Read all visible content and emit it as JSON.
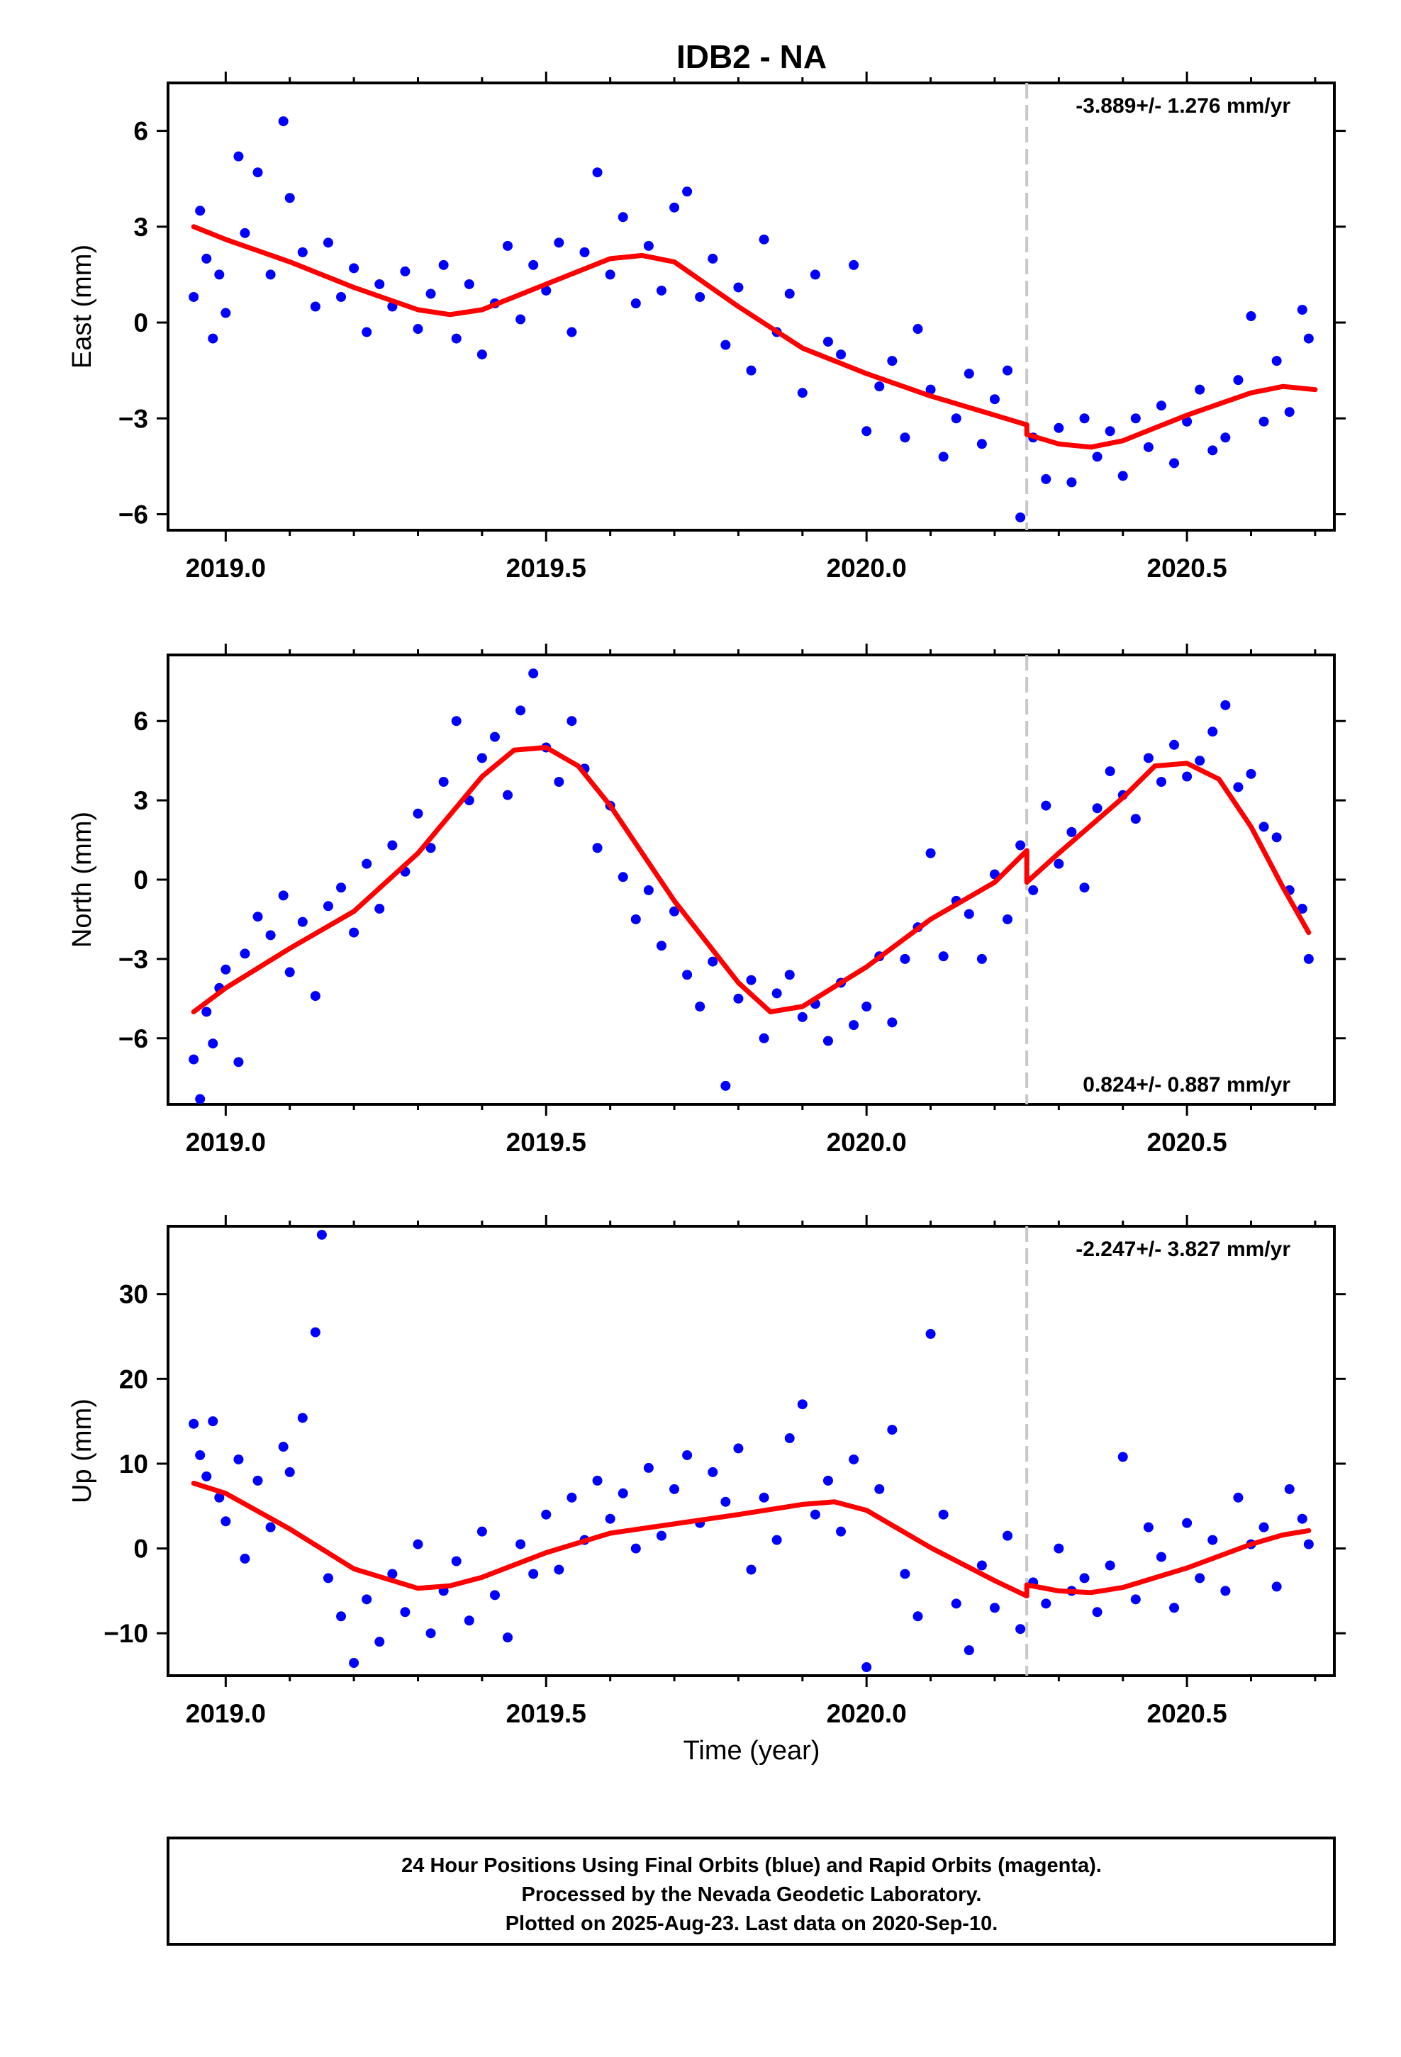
{
  "title": "IDB2 - NA",
  "xlabel": "Time (year)",
  "x_ticks": [
    "2019.0",
    "2019.5",
    "2020.0",
    "2020.5"
  ],
  "caption": [
    "24 Hour Positions Using Final Orbits (blue) and Rapid Orbits (magenta).",
    "Processed by the Nevada Geodetic Laboratory.",
    "Plotted on 2025-Aug-23. Last data on 2020-Sep-10."
  ],
  "colors": {
    "final_orbits": "#0000ff",
    "model_fit": "#ff0000",
    "offset_line": "#c8c8c8"
  },
  "chart_data": [
    {
      "type": "scatter",
      "ylabel": "East (mm)",
      "rate_label": "-3.889+/- 1.276 mm/yr",
      "rate_placement": "top-right",
      "xlim": [
        2018.91,
        2020.73
      ],
      "ylim": [
        -6.5,
        7.5
      ],
      "y_ticks": [
        6,
        3,
        0,
        -3,
        -6
      ],
      "y_tick_labels": [
        "6",
        "3",
        "0",
        "−3",
        "−6"
      ],
      "offset_epoch": 2020.25,
      "fit": {
        "x": [
          2018.95,
          2019.0,
          2019.1,
          2019.2,
          2019.3,
          2019.35,
          2019.4,
          2019.5,
          2019.6,
          2019.65,
          2019.7,
          2019.8,
          2019.9,
          2020.0,
          2020.1,
          2020.2,
          2020.25,
          2020.25,
          2020.3,
          2020.35,
          2020.4,
          2020.5,
          2020.6,
          2020.65,
          2020.7
        ],
        "y": [
          3.0,
          2.6,
          1.9,
          1.1,
          0.4,
          0.25,
          0.4,
          1.2,
          2.0,
          2.1,
          1.9,
          0.5,
          -0.8,
          -1.6,
          -2.3,
          -2.9,
          -3.2,
          -3.5,
          -3.8,
          -3.9,
          -3.7,
          -2.9,
          -2.2,
          -2.0,
          -2.1
        ]
      },
      "points": {
        "x": [
          2018.95,
          2018.96,
          2018.97,
          2018.98,
          2018.99,
          2019.0,
          2019.02,
          2019.03,
          2019.05,
          2019.07,
          2019.09,
          2019.1,
          2019.12,
          2019.14,
          2019.16,
          2019.18,
          2019.2,
          2019.22,
          2019.24,
          2019.26,
          2019.28,
          2019.3,
          2019.32,
          2019.34,
          2019.36,
          2019.38,
          2019.4,
          2019.42,
          2019.44,
          2019.46,
          2019.48,
          2019.5,
          2019.52,
          2019.54,
          2019.56,
          2019.58,
          2019.6,
          2019.62,
          2019.64,
          2019.66,
          2019.68,
          2019.7,
          2019.72,
          2019.74,
          2019.76,
          2019.78,
          2019.8,
          2019.82,
          2019.84,
          2019.86,
          2019.88,
          2019.9,
          2019.92,
          2019.94,
          2019.96,
          2019.98,
          2020.0,
          2020.02,
          2020.04,
          2020.06,
          2020.08,
          2020.1,
          2020.12,
          2020.14,
          2020.16,
          2020.18,
          2020.2,
          2020.22,
          2020.24,
          2020.26,
          2020.28,
          2020.3,
          2020.32,
          2020.34,
          2020.36,
          2020.38,
          2020.4,
          2020.42,
          2020.44,
          2020.46,
          2020.48,
          2020.5,
          2020.52,
          2020.54,
          2020.56,
          2020.58,
          2020.6,
          2020.62,
          2020.64,
          2020.66,
          2020.68,
          2020.69
        ],
        "y": [
          0.8,
          3.5,
          2.0,
          -0.5,
          1.5,
          0.3,
          5.2,
          2.8,
          4.7,
          1.5,
          6.3,
          3.9,
          2.2,
          0.5,
          2.5,
          0.8,
          1.7,
          -0.3,
          1.2,
          0.5,
          1.6,
          -0.2,
          0.9,
          1.8,
          -0.5,
          1.2,
          -1.0,
          0.6,
          2.4,
          0.1,
          1.8,
          1.0,
          2.5,
          -0.3,
          2.2,
          4.7,
          1.5,
          3.3,
          0.6,
          2.4,
          1.0,
          3.6,
          4.1,
          0.8,
          2.0,
          -0.7,
          1.1,
          -1.5,
          2.6,
          -0.3,
          0.9,
          -2.2,
          1.5,
          -0.6,
          -1.0,
          1.8,
          -3.4,
          -2.0,
          -1.2,
          -3.6,
          -0.2,
          -2.1,
          -4.2,
          -3.0,
          -1.6,
          -3.8,
          -2.4,
          -1.5,
          -6.1,
          -3.6,
          -4.9,
          -3.3,
          -5.0,
          -3.0,
          -4.2,
          -3.4,
          -4.8,
          -3.0,
          -3.9,
          -2.6,
          -4.4,
          -3.1,
          -2.1,
          -4.0,
          -3.6,
          -1.8,
          0.2,
          -3.1,
          -1.2,
          -2.8,
          0.4,
          -0.5
        ]
      }
    },
    {
      "type": "scatter",
      "ylabel": "North (mm)",
      "rate_label": "0.824+/- 0.887 mm/yr",
      "rate_placement": "bottom-right",
      "xlim": [
        2018.91,
        2020.73
      ],
      "ylim": [
        -8.5,
        8.5
      ],
      "y_ticks": [
        6,
        3,
        0,
        -3,
        -6
      ],
      "y_tick_labels": [
        "6",
        "3",
        "0",
        "−3",
        "−6"
      ],
      "offset_epoch": 2020.25,
      "fit": {
        "x": [
          2018.95,
          2019.0,
          2019.1,
          2019.2,
          2019.3,
          2019.4,
          2019.45,
          2019.5,
          2019.55,
          2019.6,
          2019.7,
          2019.8,
          2019.85,
          2019.9,
          2020.0,
          2020.1,
          2020.2,
          2020.25,
          2020.25,
          2020.3,
          2020.4,
          2020.45,
          2020.5,
          2020.55,
          2020.6,
          2020.65,
          2020.69
        ],
        "y": [
          -5.0,
          -4.1,
          -2.6,
          -1.2,
          1.0,
          3.9,
          4.9,
          5.0,
          4.3,
          2.8,
          -0.8,
          -3.9,
          -5.0,
          -4.8,
          -3.3,
          -1.5,
          -0.1,
          1.1,
          -0.1,
          1.0,
          3.1,
          4.3,
          4.4,
          3.8,
          2.0,
          -0.3,
          -2.0
        ]
      },
      "points": {
        "x": [
          2018.95,
          2018.96,
          2018.97,
          2018.98,
          2018.99,
          2019.0,
          2019.02,
          2019.03,
          2019.05,
          2019.07,
          2019.09,
          2019.1,
          2019.12,
          2019.14,
          2019.16,
          2019.18,
          2019.2,
          2019.22,
          2019.24,
          2019.26,
          2019.28,
          2019.3,
          2019.32,
          2019.34,
          2019.36,
          2019.38,
          2019.4,
          2019.42,
          2019.44,
          2019.46,
          2019.48,
          2019.5,
          2019.52,
          2019.54,
          2019.56,
          2019.58,
          2019.6,
          2019.62,
          2019.64,
          2019.66,
          2019.68,
          2019.7,
          2019.72,
          2019.74,
          2019.76,
          2019.78,
          2019.8,
          2019.82,
          2019.84,
          2019.86,
          2019.88,
          2019.9,
          2019.92,
          2019.94,
          2019.96,
          2019.98,
          2020.0,
          2020.02,
          2020.04,
          2020.06,
          2020.08,
          2020.1,
          2020.12,
          2020.14,
          2020.16,
          2020.18,
          2020.2,
          2020.22,
          2020.24,
          2020.26,
          2020.28,
          2020.3,
          2020.32,
          2020.34,
          2020.36,
          2020.38,
          2020.4,
          2020.42,
          2020.44,
          2020.46,
          2020.48,
          2020.5,
          2020.52,
          2020.54,
          2020.56,
          2020.58,
          2020.6,
          2020.62,
          2020.64,
          2020.66,
          2020.68,
          2020.69
        ],
        "y": [
          -6.8,
          -8.3,
          -5.0,
          -6.2,
          -4.1,
          -3.4,
          -6.9,
          -2.8,
          -1.4,
          -2.1,
          -0.6,
          -3.5,
          -1.6,
          -4.4,
          -1.0,
          -0.3,
          -2.0,
          0.6,
          -1.1,
          1.3,
          0.3,
          2.5,
          1.2,
          3.7,
          6.0,
          3.0,
          4.6,
          5.4,
          3.2,
          6.4,
          7.8,
          5.0,
          3.7,
          6.0,
          4.2,
          1.2,
          2.8,
          0.1,
          -1.5,
          -0.4,
          -2.5,
          -1.2,
          -3.6,
          -4.8,
          -3.1,
          -7.8,
          -4.5,
          -3.8,
          -6.0,
          -4.3,
          -3.6,
          -5.2,
          -4.7,
          -6.1,
          -3.9,
          -5.5,
          -4.8,
          -2.9,
          -5.4,
          -3.0,
          -1.8,
          1.0,
          -2.9,
          -0.8,
          -1.3,
          -3.0,
          0.2,
          -1.5,
          1.3,
          -0.4,
          2.8,
          0.6,
          1.8,
          -0.3,
          2.7,
          4.1,
          3.2,
          2.3,
          4.6,
          3.7,
          5.1,
          3.9,
          4.5,
          5.6,
          6.6,
          3.5,
          4.0,
          2.0,
          1.6,
          -0.4,
          -1.1,
          -3.0
        ]
      }
    },
    {
      "type": "scatter",
      "ylabel": "Up (mm)",
      "rate_label": "-2.247+/- 3.827 mm/yr",
      "rate_placement": "top-right",
      "xlim": [
        2018.91,
        2020.73
      ],
      "ylim": [
        -15,
        38
      ],
      "y_ticks": [
        30,
        20,
        10,
        0,
        -10
      ],
      "y_tick_labels": [
        "30",
        "20",
        "10",
        "0",
        "−10"
      ],
      "offset_epoch": 2020.25,
      "fit": {
        "x": [
          2018.95,
          2019.0,
          2019.1,
          2019.2,
          2019.3,
          2019.35,
          2019.4,
          2019.5,
          2019.6,
          2019.7,
          2019.8,
          2019.9,
          2019.95,
          2020.0,
          2020.1,
          2020.2,
          2020.25,
          2020.25,
          2020.3,
          2020.35,
          2020.4,
          2020.5,
          2020.6,
          2020.65,
          2020.69
        ],
        "y": [
          7.7,
          6.5,
          2.3,
          -2.4,
          -4.7,
          -4.4,
          -3.4,
          -0.5,
          1.8,
          2.9,
          4.0,
          5.2,
          5.5,
          4.5,
          0.1,
          -3.8,
          -5.6,
          -4.3,
          -5.0,
          -5.2,
          -4.6,
          -2.3,
          0.5,
          1.6,
          2.1
        ]
      },
      "points": {
        "x": [
          2018.95,
          2018.96,
          2018.97,
          2018.98,
          2018.99,
          2019.0,
          2019.02,
          2019.03,
          2019.05,
          2019.07,
          2019.09,
          2019.1,
          2019.12,
          2019.14,
          2019.15,
          2019.16,
          2019.18,
          2019.2,
          2019.22,
          2019.24,
          2019.26,
          2019.28,
          2019.3,
          2019.32,
          2019.34,
          2019.36,
          2019.38,
          2019.4,
          2019.42,
          2019.44,
          2019.46,
          2019.48,
          2019.5,
          2019.52,
          2019.54,
          2019.56,
          2019.58,
          2019.6,
          2019.62,
          2019.64,
          2019.66,
          2019.68,
          2019.7,
          2019.72,
          2019.74,
          2019.76,
          2019.78,
          2019.8,
          2019.82,
          2019.84,
          2019.86,
          2019.88,
          2019.9,
          2019.92,
          2019.94,
          2019.96,
          2019.98,
          2020.0,
          2020.02,
          2020.04,
          2020.06,
          2020.08,
          2020.1,
          2020.12,
          2020.14,
          2020.16,
          2020.18,
          2020.2,
          2020.22,
          2020.24,
          2020.26,
          2020.28,
          2020.3,
          2020.32,
          2020.34,
          2020.36,
          2020.38,
          2020.4,
          2020.42,
          2020.44,
          2020.46,
          2020.48,
          2020.5,
          2020.52,
          2020.54,
          2020.56,
          2020.58,
          2020.6,
          2020.62,
          2020.64,
          2020.66,
          2020.68,
          2020.69
        ],
        "y": [
          14.7,
          11.0,
          8.5,
          15.0,
          6.0,
          3.2,
          10.5,
          -1.2,
          8.0,
          2.5,
          12.0,
          9.0,
          15.4,
          25.5,
          37.0,
          -3.5,
          -8.0,
          -13.5,
          -6.0,
          -11.0,
          -3.0,
          -7.5,
          0.5,
          -10.0,
          -5.0,
          -1.5,
          -8.5,
          2.0,
          -5.5,
          -10.5,
          0.5,
          -3.0,
          4.0,
          -2.5,
          6.0,
          1.0,
          8.0,
          3.5,
          6.5,
          0.0,
          9.5,
          1.5,
          7.0,
          11.0,
          3.0,
          9.0,
          5.5,
          11.8,
          -2.5,
          6.0,
          1.0,
          13.0,
          17.0,
          4.0,
          8.0,
          2.0,
          10.5,
          -14.0,
          7.0,
          14.0,
          -3.0,
          -8.0,
          25.3,
          4.0,
          -6.5,
          -12.0,
          -2.0,
          -7.0,
          1.5,
          -9.5,
          -4.0,
          -6.5,
          0.0,
          -5.0,
          -3.5,
          -7.5,
          -2.0,
          10.8,
          -6.0,
          2.5,
          -1.0,
          -7.0,
          3.0,
          -3.5,
          1.0,
          -5.0,
          6.0,
          0.5,
          2.5,
          -4.5,
          7.0,
          3.5,
          0.5
        ]
      }
    }
  ]
}
